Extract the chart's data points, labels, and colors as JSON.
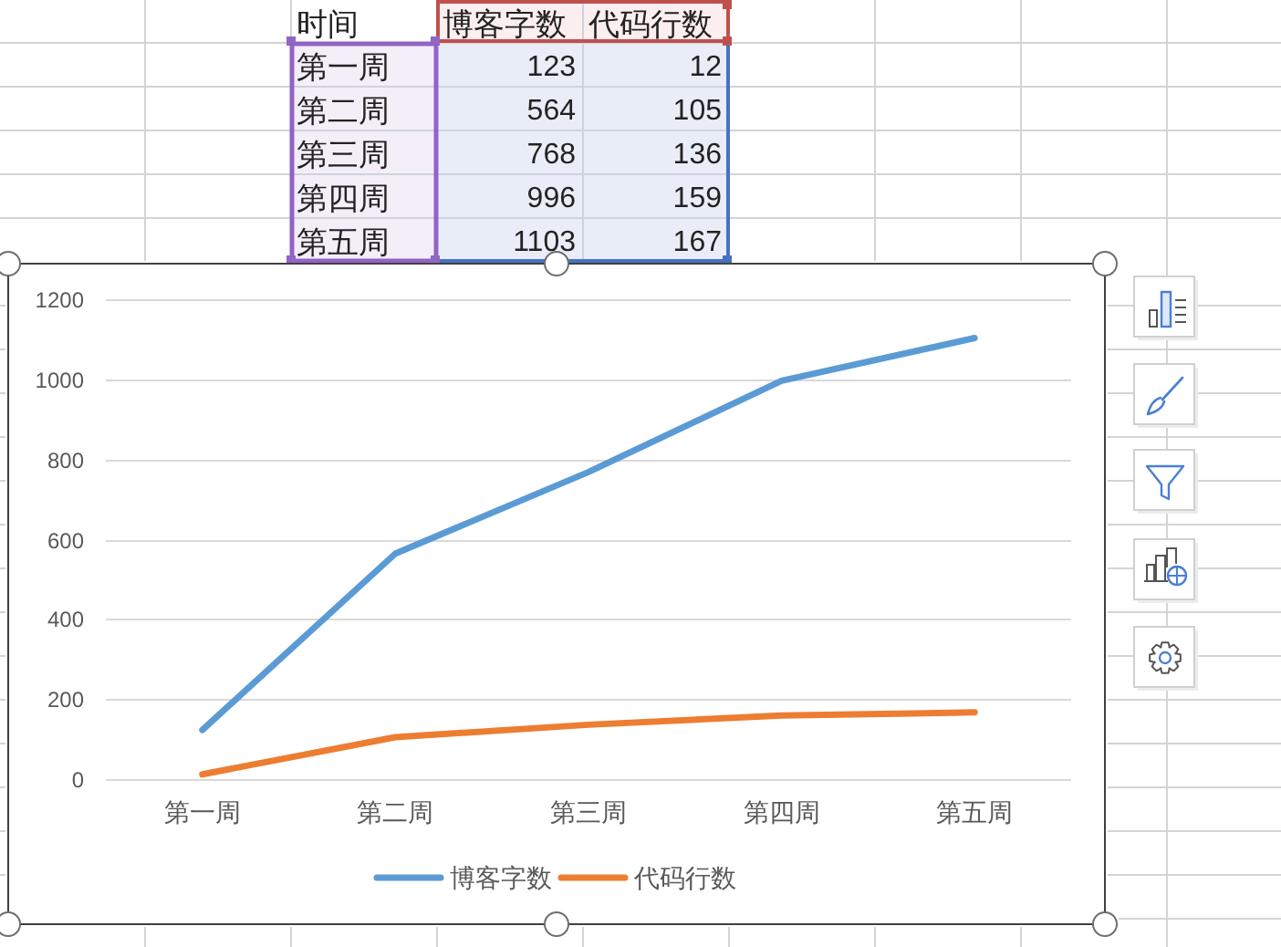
{
  "chart_data": [
    {
      "type": "other",
      "categories": [
        "第一周",
        "第二周",
        "第三周",
        "第四周",
        "第五周"
      ],
      "series": [
        {
          "name": "博客字数",
          "color": "#e9edf8",
          "values": [
            123,
            564,
            768,
            996,
            1103
          ]
        },
        {
          "name": "代码行数",
          "color": "#e9edf8",
          "values": [
            12,
            105,
            136,
            159,
            167
          ]
        }
      ],
      "data_labels": true,
      "annotations": [
        "时间"
      ]
    },
    {
      "type": "line",
      "categories": [
        "第一周",
        "第二周",
        "第三周",
        "第四周",
        "第五周"
      ],
      "series": [
        {
          "name": "博客字数",
          "color": "#5b9bd5",
          "values": [
            123,
            564,
            768,
            996,
            1103
          ]
        },
        {
          "name": "代码行数",
          "color": "#ed7d31",
          "values": [
            12,
            105,
            136,
            159,
            167
          ]
        }
      ],
      "ylim": [
        0,
        1200
      ],
      "yticks": [
        0,
        200,
        400,
        600,
        800,
        1000,
        1200
      ],
      "grid": "y",
      "legend": "bottom"
    }
  ]
}
